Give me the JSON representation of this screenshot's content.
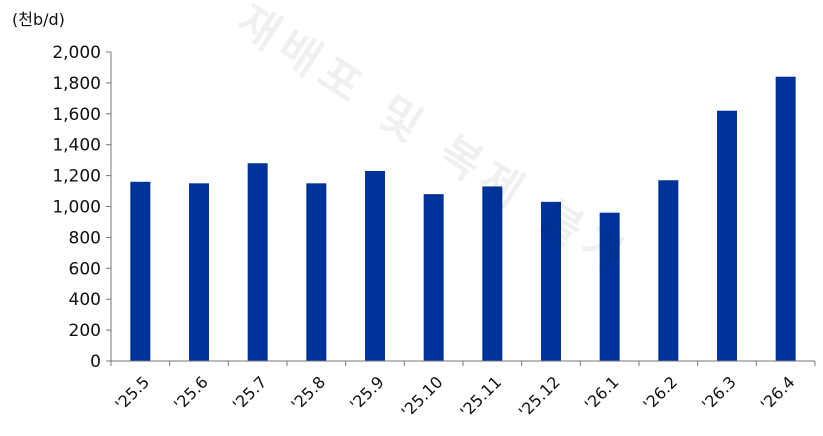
{
  "chart_data": {
    "type": "bar",
    "unit_label": "(천b/d)",
    "categories": [
      "'25.5",
      "'25.6",
      "'25.7",
      "'25.8",
      "'25.9",
      "'25.10",
      "'25.11",
      "'25.12",
      "'26.1",
      "'26.2",
      "'26.3",
      "'26.4"
    ],
    "values": [
      1160,
      1150,
      1280,
      1150,
      1230,
      1080,
      1130,
      1030,
      960,
      1170,
      1620,
      1840
    ],
    "yticks": [
      "2,000",
      "1,800",
      "1,600",
      "1,400",
      "1,200",
      "1,000",
      "800",
      "600",
      "400",
      "200",
      "0"
    ],
    "ylim": [
      0,
      2000
    ],
    "bar_color": "#00339a",
    "grid": false,
    "legend": "none"
  },
  "watermark": "재배포 및 복제 불가"
}
